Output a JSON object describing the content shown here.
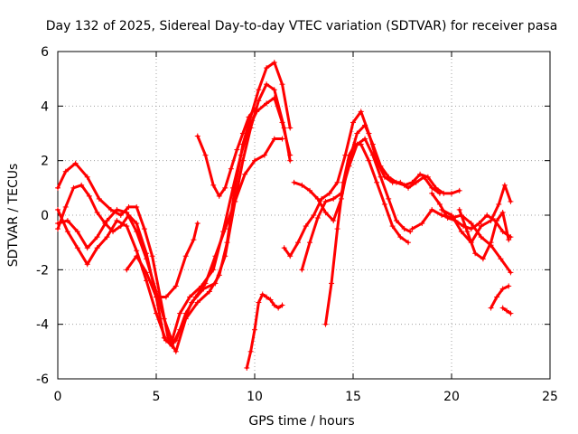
{
  "chart_data": {
    "type": "scatter",
    "title": "Day 132 of 2025, Sidereal Day-to-day VTEC variation (SDTVAR) for receiver pasa",
    "xlabel": "GPS time / hours",
    "ylabel": "SDTVAR / TECUs",
    "xlim": [
      0,
      25
    ],
    "ylim": [
      -6,
      6
    ],
    "xticks": [
      0,
      5,
      10,
      15,
      20,
      25
    ],
    "yticks": [
      -6,
      -4,
      -2,
      0,
      2,
      4,
      6
    ],
    "x_tick_labels": [
      "0",
      "5",
      "10",
      "15",
      "20",
      "25"
    ],
    "y_tick_labels": [
      "-6",
      "-4",
      "-2",
      "0",
      "2",
      "4",
      "6"
    ],
    "grid": true,
    "legend": "none",
    "marker": "plus",
    "color": "#ff0000",
    "series": [
      {
        "x": [
          0.0,
          0.4,
          0.9,
          1.5,
          2.1,
          2.7,
          3.2,
          3.6,
          4.0,
          4.4,
          4.8,
          5.2,
          5.6,
          6.0,
          6.5,
          7.1,
          7.7,
          8.2,
          8.6,
          9.0,
          9.4,
          9.8,
          10.2,
          10.6,
          11.0,
          11.4,
          11.8
        ],
        "y": [
          1.0,
          1.6,
          1.9,
          1.4,
          0.6,
          0.2,
          0.0,
          0.3,
          0.3,
          -0.5,
          -1.5,
          -3.0,
          -4.5,
          -5.0,
          -3.8,
          -3.2,
          -2.8,
          -2.2,
          -1.0,
          1.0,
          2.6,
          3.6,
          4.6,
          5.4,
          5.6,
          4.8,
          3.2
        ]
      },
      {
        "x": [
          0.0,
          0.4,
          0.8,
          1.2,
          1.6,
          2.0,
          2.4,
          2.8,
          3.2,
          3.6,
          4.0,
          4.5,
          5.0,
          5.4,
          5.8,
          6.2,
          6.8,
          7.4,
          8.0,
          8.5,
          9.0,
          9.4,
          9.8,
          10.2,
          10.6,
          11.0,
          11.5,
          11.8
        ],
        "y": [
          -0.5,
          0.3,
          1.0,
          1.1,
          0.7,
          0.1,
          -0.3,
          -0.6,
          -0.4,
          0.0,
          -0.3,
          -1.4,
          -3.0,
          -4.5,
          -4.8,
          -4.2,
          -3.2,
          -2.7,
          -2.5,
          -1.5,
          0.5,
          2.0,
          3.2,
          4.2,
          4.8,
          4.6,
          3.2,
          2.0
        ]
      },
      {
        "x": [
          0.0,
          0.5,
          1.0,
          1.5,
          2.0,
          2.5,
          3.0,
          3.5,
          4.0,
          4.5,
          5.0,
          5.4,
          5.8,
          6.2,
          6.7,
          7.3,
          7.9,
          8.4,
          8.9,
          9.3,
          9.7,
          10.1,
          10.6,
          11.0,
          11.4,
          11.8
        ],
        "y": [
          -0.3,
          -0.2,
          -0.6,
          -1.2,
          -0.8,
          -0.2,
          0.2,
          0.1,
          -0.6,
          -1.6,
          -2.8,
          -3.8,
          -4.6,
          -3.6,
          -3.0,
          -2.6,
          -2.0,
          -0.6,
          1.0,
          2.2,
          3.2,
          3.8,
          4.1,
          4.3,
          3.4,
          2.2
        ]
      },
      {
        "x": [
          0.0,
          0.5,
          1.0,
          1.5,
          2.0,
          2.5,
          3.0,
          3.5,
          4.0,
          4.5,
          5.0,
          5.5,
          6.0,
          6.5,
          7.0,
          7.5,
          8.0,
          8.5,
          9.0,
          9.5,
          10.0,
          10.5,
          11.0,
          11.4
        ],
        "y": [
          0.2,
          -0.6,
          -1.2,
          -1.8,
          -1.2,
          -0.8,
          -0.2,
          -0.4,
          -1.3,
          -2.4,
          -3.6,
          -4.6,
          -4.6,
          -3.6,
          -3.0,
          -2.5,
          -1.5,
          -0.5,
          0.5,
          1.5,
          2.0,
          2.2,
          2.8,
          2.8
        ]
      },
      {
        "x": [
          7.1,
          7.5,
          7.9,
          8.2,
          8.5,
          8.8,
          9.1,
          9.4,
          9.7,
          10.0
        ],
        "y": [
          2.9,
          2.2,
          1.1,
          0.7,
          1.0,
          1.7,
          2.4,
          3.0,
          3.6,
          3.9
        ]
      },
      {
        "x": [
          3.5,
          4.0,
          4.5,
          5.0,
          5.5,
          6.0,
          6.5,
          6.9,
          7.1
        ],
        "y": [
          -2.0,
          -1.5,
          -2.1,
          -3.0,
          -3.0,
          -2.6,
          -1.5,
          -0.9,
          -0.3
        ]
      },
      {
        "x": [
          9.6,
          9.8,
          10.0,
          10.2,
          10.4,
          10.6,
          10.8,
          11.0,
          11.2,
          11.4
        ],
        "y": [
          -5.6,
          -5.0,
          -4.2,
          -3.2,
          -2.9,
          -3.0,
          -3.1,
          -3.3,
          -3.4,
          -3.3
        ]
      },
      {
        "x": [
          11.5,
          11.8,
          12.2,
          12.6,
          13.0,
          13.4,
          13.8,
          14.2,
          14.6,
          15.0,
          15.4,
          15.8,
          16.2,
          16.6,
          17.0,
          17.4,
          17.8,
          18.2,
          18.6,
          19.0,
          19.4
        ],
        "y": [
          -1.2,
          -1.5,
          -1.0,
          -0.4,
          0.0,
          0.6,
          0.8,
          1.2,
          2.2,
          3.4,
          3.8,
          3.0,
          2.0,
          1.4,
          1.2,
          1.2,
          1.0,
          1.2,
          1.4,
          1.0,
          0.8
        ]
      },
      {
        "x": [
          12.0,
          12.4,
          12.8,
          13.2,
          13.6,
          14.0,
          14.4,
          14.8,
          15.2,
          15.6,
          16.0,
          16.4,
          16.8,
          17.2,
          17.6,
          18.0,
          18.4,
          18.8,
          19.2,
          19.6,
          20.0,
          20.4
        ],
        "y": [
          1.2,
          1.1,
          0.9,
          0.6,
          0.1,
          -0.2,
          0.6,
          2.0,
          3.0,
          3.3,
          2.6,
          1.8,
          1.4,
          1.2,
          1.1,
          1.2,
          1.5,
          1.4,
          1.0,
          0.8,
          0.8,
          0.9
        ]
      },
      {
        "x": [
          12.4,
          12.8,
          13.2,
          13.6,
          14.0,
          14.4,
          14.8,
          15.2,
          15.6,
          16.0,
          16.4,
          16.8,
          17.2,
          17.6,
          17.9
        ],
        "y": [
          -2.0,
          -1.0,
          -0.1,
          0.5,
          0.6,
          0.8,
          1.8,
          2.6,
          2.8,
          2.2,
          1.4,
          0.6,
          -0.2,
          -0.5,
          -0.6
        ]
      },
      {
        "x": [
          13.6,
          13.9,
          14.2,
          14.5,
          14.8,
          15.1,
          15.4,
          15.8,
          16.2,
          16.6,
          17.0,
          17.4,
          17.8
        ],
        "y": [
          -4.0,
          -2.5,
          -0.5,
          1.2,
          2.2,
          2.6,
          2.6,
          2.0,
          1.2,
          0.4,
          -0.4,
          -0.8,
          -1.0
        ]
      },
      {
        "x": [
          18.0,
          18.5,
          19.0,
          19.5,
          20.0,
          20.5,
          21.0,
          21.5,
          22.0,
          22.5,
          23.0
        ],
        "y": [
          -0.5,
          -0.3,
          0.2,
          0.0,
          -0.1,
          0.0,
          -0.3,
          -0.8,
          -1.1,
          -1.6,
          -2.1
        ]
      },
      {
        "x": [
          19.5,
          20.0,
          20.5,
          21.0,
          21.5,
          22.0,
          22.4,
          22.7,
          23.0
        ],
        "y": [
          0.2,
          0.0,
          -0.6,
          -1.0,
          -0.4,
          -0.2,
          0.4,
          1.1,
          0.5
        ]
      },
      {
        "x": [
          20.4,
          20.8,
          21.2,
          21.6,
          22.0,
          22.3,
          22.6,
          22.9
        ],
        "y": [
          0.2,
          -0.6,
          -1.4,
          -1.6,
          -1.0,
          -0.2,
          0.1,
          -0.9
        ]
      },
      {
        "x": [
          19.0,
          19.4,
          19.8,
          20.2,
          20.6,
          21.0,
          21.4,
          21.8,
          22.2,
          22.6,
          23.0
        ],
        "y": [
          0.8,
          0.4,
          -0.1,
          -0.2,
          -0.4,
          -0.5,
          -0.3,
          0.0,
          -0.2,
          -0.6,
          -0.8
        ]
      },
      {
        "x": [
          22.0,
          22.3,
          22.6,
          22.9
        ],
        "y": [
          -3.4,
          -3.0,
          -2.7,
          -2.6
        ]
      },
      {
        "x": [
          22.6,
          22.8,
          23.0
        ],
        "y": [
          -3.4,
          -3.5,
          -3.6
        ]
      }
    ]
  }
}
